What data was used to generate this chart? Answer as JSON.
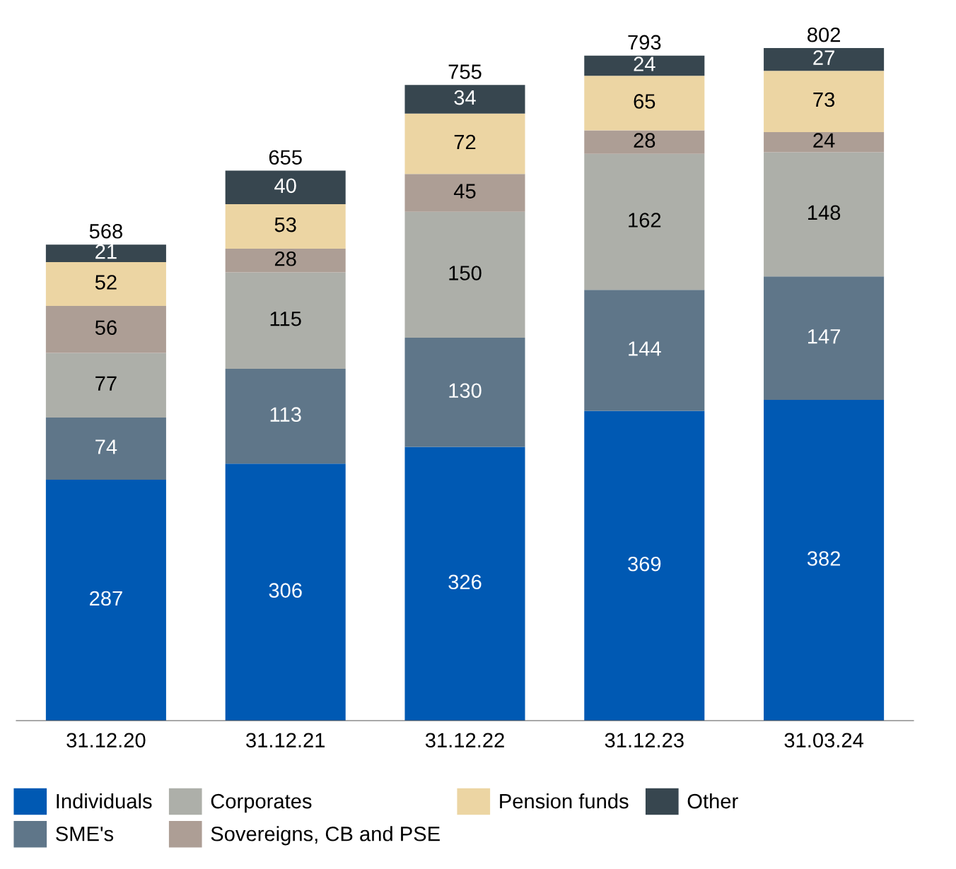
{
  "chart_data": {
    "type": "bar",
    "stacked": true,
    "data_labels": true,
    "legend": "bottom",
    "grid": false,
    "tick_labels": "x",
    "categories": [
      "31.12.20",
      "31.12.21",
      "31.12.22",
      "31.12.23",
      "31.03.24"
    ],
    "series": [
      {
        "name": "Individuals",
        "color": "#0059b3",
        "values": [
          287,
          306,
          326,
          369,
          382
        ]
      },
      {
        "name": "SME's",
        "color": "#5f7689",
        "values": [
          74,
          113,
          130,
          144,
          147
        ]
      },
      {
        "name": "Corporates",
        "color": "#adafa9",
        "values": [
          77,
          115,
          150,
          162,
          148
        ]
      },
      {
        "name": "Sovereigns, CB and PSE",
        "color": "#ad9e95",
        "values": [
          56,
          28,
          45,
          28,
          24
        ]
      },
      {
        "name": "Pension funds",
        "color": "#ecd5a3",
        "values": [
          52,
          53,
          72,
          65,
          73
        ]
      },
      {
        "name": "Other",
        "color": "#37464f",
        "values": [
          21,
          40,
          34,
          24,
          27
        ]
      }
    ],
    "totals": [
      "568",
      "655",
      "755",
      "793",
      "802"
    ]
  }
}
